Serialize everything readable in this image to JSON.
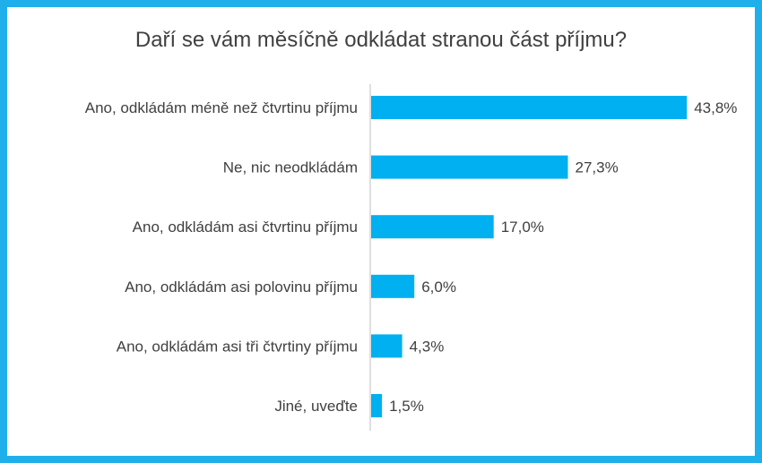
{
  "chart_data": {
    "type": "bar",
    "orientation": "horizontal",
    "title": "Daří se vám měsíčně odkládat stranou část příjmu?",
    "categories": [
      "Ano, odkládám méně než čtvrtinu příjmu",
      "Ne, nic neodkládám",
      "Ano, odkládám asi čtvrtinu příjmu",
      "Ano, odkládám asi polovinu příjmu",
      "Ano, odkládám asi tři čtvrtiny příjmu",
      "Jiné, uveďte"
    ],
    "values": [
      43.8,
      27.3,
      17.0,
      6.0,
      4.3,
      1.5
    ],
    "value_labels": [
      "43,8%",
      "27,3%",
      "17,0%",
      "6,0%",
      "4,3%",
      "1,5%"
    ],
    "xlim": [
      0,
      50
    ],
    "grid": false,
    "legend": "none",
    "bar_color": "#00b0f0",
    "frame_color": "#1fb0ec"
  }
}
